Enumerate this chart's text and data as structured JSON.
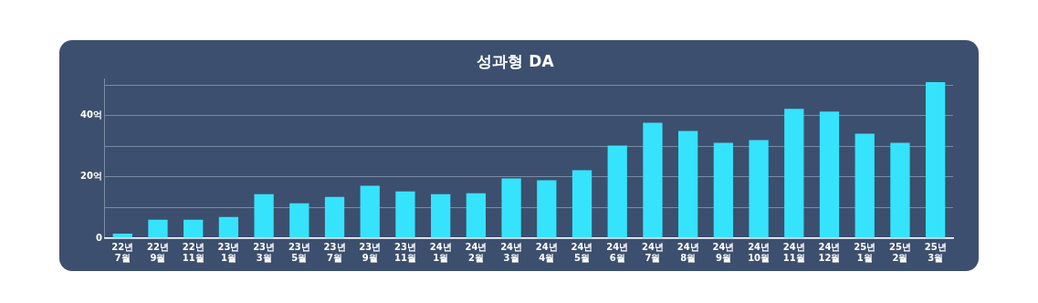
{
  "chart_data": {
    "type": "bar",
    "title": "성과형 DA",
    "categories": [
      "22년 7월",
      "22년 9월",
      "22년 11월",
      "23년 1월",
      "23년 3월",
      "23년 5월",
      "23년 7월",
      "23년 9월",
      "23년 11월",
      "24년 1월",
      "24년 2월",
      "24년 3월",
      "24년 4월",
      "24년 5월",
      "24년 6월",
      "24년 7월",
      "24년 8월",
      "24년 9월",
      "24년 10월",
      "24년 11월",
      "24년 12월",
      "25년 1월",
      "25년 2월",
      "25년 3월"
    ],
    "values": [
      1.5,
      6.0,
      6.0,
      6.9,
      14.4,
      11.4,
      13.5,
      17.1,
      15.3,
      14.4,
      14.7,
      19.5,
      18.9,
      22.2,
      30.2,
      37.7,
      35.0,
      31.1,
      32.0,
      42.2,
      41.3,
      34.1,
      31.1,
      50.9
    ],
    "color": "#35e3fd",
    "ylim": [
      0,
      52
    ],
    "yticks": [
      0,
      {
        "value": 10,
        "label": null
      },
      {
        "value": 20,
        "label": "20억"
      },
      {
        "value": 30,
        "label": null
      },
      {
        "value": 40,
        "label": "40억"
      },
      {
        "value": 50,
        "label": null
      }
    ],
    "grid": "y"
  }
}
